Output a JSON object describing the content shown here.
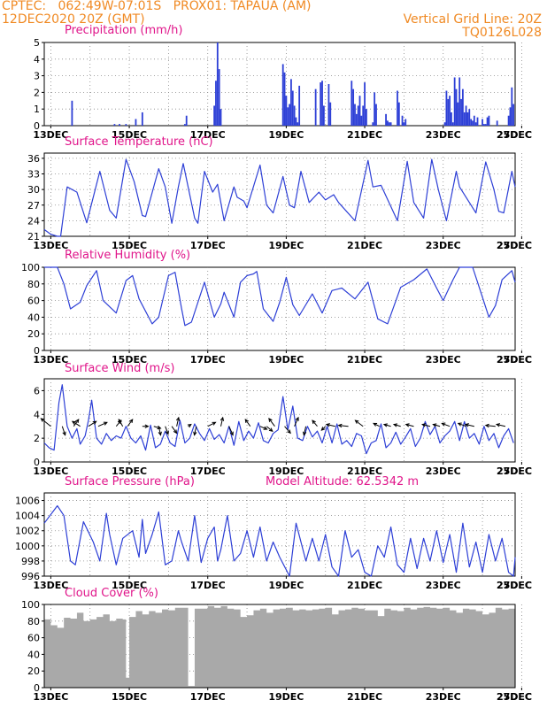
{
  "header": {
    "line1_left": "CPTEC:   062:49W-07:01S   PROX01: TAPAUA (AM)",
    "line2_left": "12DEC2020 20Z (GMT)",
    "line2_right": "Vertical Grid Line: 20Z",
    "line3_right": "TQ0126L028"
  },
  "colors": {
    "header_text": "#f08a24",
    "panel_title": "#e0158a",
    "series_line": "#2d3fd6",
    "precip_bars": "#2d3fd6",
    "cloud_fill": "#a9a9a9",
    "wind_arrows": "#000000"
  },
  "chart_data": [
    {
      "type": "bar",
      "title": "Precipitation (mm/h)",
      "ylim": [
        0,
        5
      ],
      "yticks": [
        "0",
        "1",
        "2",
        "3",
        "4",
        "5"
      ],
      "xticks": [
        "13DEC",
        "15DEC",
        "17DEC",
        "19DEC",
        "21DEC",
        "23DEC",
        "25DEC",
        "27DEC"
      ],
      "x_unit": "hours since 12DEC2020 20Z",
      "x": [
        17,
        43,
        46,
        50,
        56,
        60,
        86,
        87,
        104,
        105,
        106,
        107,
        108,
        146,
        147,
        148,
        149,
        150,
        151,
        152,
        153,
        154,
        155,
        156,
        166,
        169,
        170,
        171,
        174,
        175,
        188,
        189,
        190,
        191,
        192,
        193,
        194,
        195,
        196,
        197,
        201,
        202,
        203,
        209,
        210,
        211,
        212,
        216,
        217,
        219,
        220,
        221,
        245,
        246,
        247,
        248,
        249,
        250,
        251,
        252,
        253,
        254,
        255,
        256,
        257,
        258,
        259,
        260,
        261,
        262,
        263,
        264,
        265,
        268,
        269,
        270,
        271,
        272,
        277,
        284,
        285,
        286,
        287
      ],
      "values": [
        1.5,
        0.1,
        0.1,
        0.1,
        0.4,
        0.8,
        0.1,
        0.6,
        1.2,
        2.7,
        5.0,
        3.4,
        1.0,
        3.7,
        3.2,
        1.8,
        1.1,
        1.3,
        2.8,
        2.1,
        1.2,
        0.5,
        0.2,
        2.4,
        2.2,
        2.6,
        2.7,
        1.2,
        2.5,
        1.4,
        2.7,
        2.2,
        1.3,
        0.7,
        1.2,
        1.8,
        0.6,
        1.2,
        2.6,
        1.0,
        0.2,
        2.0,
        1.3,
        0.7,
        0.3,
        0.2,
        0.2,
        2.1,
        1.4,
        0.6,
        0.2,
        0.4,
        0.2,
        2.1,
        1.6,
        1.8,
        0.8,
        0.2,
        2.9,
        2.2,
        1.4,
        2.9,
        1.6,
        2.2,
        0.8,
        1.2,
        0.8,
        1.0,
        0.4,
        0.3,
        0.6,
        0.2,
        0.5,
        0.4,
        0.1,
        0.1,
        0.5,
        0.6,
        0.3,
        0.6,
        1.1,
        2.3,
        1.3
      ]
    },
    {
      "type": "line",
      "title": "Surface Temperature (nC)",
      "ylim": [
        21,
        37
      ],
      "yticks": [
        "21",
        "24",
        "27",
        "30",
        "33",
        "36"
      ],
      "xticks": [
        "13DEC",
        "15DEC",
        "17DEC",
        "19DEC",
        "21DEC",
        "23DEC",
        "25DEC",
        "27DEC"
      ],
      "x_unit": "hours since 12DEC2020 20Z",
      "x": [
        0,
        4,
        8,
        10,
        14,
        20,
        26,
        34,
        40,
        44,
        50,
        55,
        60,
        62,
        70,
        74,
        78,
        82,
        85,
        92,
        94,
        98,
        103,
        106,
        110,
        116,
        118,
        122,
        124,
        132,
        136,
        140,
        146,
        150,
        153,
        157,
        162,
        168,
        172,
        177,
        180,
        190,
        198,
        201,
        206,
        216,
        222,
        226,
        232,
        237,
        241,
        246,
        252,
        254,
        260,
        264,
        270,
        275,
        278,
        281,
        286,
        288
      ],
      "values": [
        22.3,
        21.4,
        21.0,
        21.0,
        30.5,
        29.5,
        23.6,
        33.5,
        26.0,
        24.5,
        35.8,
        31.5,
        25.0,
        24.8,
        34.0,
        30.5,
        23.5,
        30.5,
        35.0,
        24.5,
        23.5,
        33.5,
        29.5,
        31.0,
        24.0,
        30.5,
        28.5,
        27.8,
        26.5,
        34.7,
        27.0,
        25.5,
        32.5,
        27.0,
        26.5,
        33.5,
        27.5,
        29.5,
        28.0,
        29.0,
        27.5,
        24.0,
        35.6,
        30.5,
        30.8,
        24.0,
        35.4,
        27.5,
        24.5,
        35.8,
        30.0,
        24.0,
        33.5,
        30.5,
        27.5,
        25.5,
        35.3,
        30.0,
        25.8,
        25.5,
        33.5,
        30.5
      ]
    },
    {
      "type": "line",
      "title": "Relative Humidity (%)",
      "ylim": [
        0,
        100
      ],
      "yticks": [
        "0",
        "20",
        "40",
        "60",
        "80",
        "100"
      ],
      "xticks": [
        "13DEC",
        "15DEC",
        "17DEC",
        "19DEC",
        "21DEC",
        "23DEC",
        "25DEC",
        "27DEC"
      ],
      "x_unit": "hours since 12DEC2020 20Z",
      "x": [
        0,
        8,
        12,
        16,
        22,
        26,
        32,
        36,
        44,
        50,
        54,
        58,
        66,
        70,
        76,
        80,
        84,
        86,
        90,
        98,
        104,
        108,
        110,
        116,
        120,
        124,
        128,
        130,
        134,
        140,
        144,
        148,
        152,
        156,
        164,
        170,
        176,
        182,
        190,
        198,
        204,
        210,
        218,
        226,
        234,
        240,
        244,
        250,
        254,
        262,
        266,
        272,
        276,
        280,
        286,
        288
      ],
      "values": [
        100,
        100,
        80,
        50,
        58,
        78,
        96,
        60,
        45,
        84,
        90,
        62,
        32,
        40,
        90,
        94,
        50,
        30,
        34,
        82,
        40,
        56,
        70,
        40,
        82,
        90,
        92,
        95,
        50,
        35,
        58,
        88,
        55,
        42,
        68,
        45,
        72,
        75,
        62,
        82,
        38,
        32,
        76,
        85,
        98,
        75,
        60,
        85,
        100,
        100,
        76,
        40,
        54,
        85,
        96,
        82
      ]
    },
    {
      "type": "line",
      "title": "Surface Wind (m/s)",
      "ylim": [
        0,
        7
      ],
      "yticks": [
        "0",
        "2",
        "4",
        "6"
      ],
      "xticks": [
        "13DEC",
        "15DEC",
        "17DEC",
        "19DEC",
        "21DEC",
        "23DEC",
        "25DEC",
        "27DEC"
      ],
      "x_unit": "hours since 12DEC2020 20Z",
      "x": [
        0,
        3,
        6,
        9,
        11,
        14,
        17,
        20,
        22,
        25,
        27,
        29,
        32,
        35,
        38,
        41,
        44,
        47,
        50,
        53,
        56,
        59,
        62,
        65,
        68,
        71,
        74,
        77,
        80,
        83,
        86,
        89,
        92,
        95,
        98,
        101,
        104,
        107,
        110,
        113,
        116,
        119,
        122,
        125,
        128,
        131,
        134,
        137,
        140,
        143,
        146,
        149,
        152,
        155,
        158,
        161,
        164,
        167,
        170,
        173,
        176,
        179,
        182,
        185,
        188,
        191,
        194,
        197,
        200,
        203,
        206,
        209,
        212,
        215,
        218,
        221,
        224,
        227,
        230,
        233,
        236,
        239,
        242,
        245,
        248,
        251,
        254,
        257,
        260,
        263,
        266,
        269,
        272,
        275,
        278,
        281,
        284,
        287
      ],
      "values": [
        1.6,
        1.2,
        1.0,
        5.0,
        6.5,
        3.0,
        2.0,
        2.8,
        1.5,
        2.2,
        3.5,
        5.2,
        2.0,
        1.5,
        2.4,
        1.8,
        2.2,
        2.0,
        3.0,
        2.0,
        1.6,
        2.2,
        1.0,
        3.1,
        1.2,
        1.5,
        2.6,
        1.6,
        1.3,
        3.5,
        1.6,
        2.0,
        3.2,
        2.4,
        1.8,
        2.8,
        1.9,
        2.3,
        1.6,
        3.0,
        1.4,
        3.4,
        1.8,
        2.6,
        2.0,
        3.3,
        1.8,
        1.6,
        2.4,
        2.7,
        5.5,
        2.7,
        4.7,
        2.0,
        1.8,
        3.0,
        2.1,
        2.6,
        1.6,
        3.0,
        1.6,
        3.2,
        1.5,
        1.8,
        1.3,
        2.4,
        2.2,
        0.7,
        1.6,
        1.8,
        3.2,
        1.2,
        1.6,
        2.5,
        1.5,
        2.1,
        2.8,
        1.3,
        2.0,
        3.4,
        2.3,
        3.0,
        1.6,
        2.2,
        2.6,
        3.4,
        1.8,
        3.4,
        2.0,
        2.4,
        1.5,
        3.0,
        1.8,
        2.4,
        1.2,
        2.2,
        2.8,
        1.6
      ],
      "arrows_x": [
        4,
        11,
        18,
        22,
        27,
        33,
        44,
        48,
        51,
        60,
        67,
        70,
        74,
        78,
        81,
        88,
        93,
        100,
        108,
        113,
        126,
        132,
        136,
        141,
        147,
        153,
        160,
        167,
        172,
        178,
        186,
        195,
        205,
        212,
        218,
        226,
        236,
        242,
        248,
        258,
        263,
        276,
        282
      ],
      "arrows_u": [
        -1.0,
        0.3,
        0.5,
        -0.8,
        0.8,
        0.9,
        0.5,
        -0.4,
        0.5,
        0.6,
        0.7,
        0.2,
        0.3,
        0.5,
        0.2,
        0.3,
        -0.2,
        0.8,
        0.2,
        0.4,
        -0.5,
        0.7,
        0.6,
        -0.6,
        0.6,
        0.4,
        -0.2,
        -0.5,
        -0.4,
        -0.9,
        -1.0,
        -0.8,
        -0.6,
        -0.7,
        -0.7,
        -0.8,
        -0.8,
        -0.7,
        -0.8,
        -0.8,
        -0.9,
        -1.0,
        -0.9
      ],
      "arrows_v": [
        0.8,
        -0.9,
        0.7,
        0.5,
        0.5,
        0.4,
        0.6,
        0.7,
        0.7,
        0.0,
        -0.2,
        -0.9,
        -0.8,
        -0.7,
        0.9,
        0.2,
        -0.9,
        0.4,
        0.9,
        -0.9,
        0.7,
        -0.3,
        -0.5,
        0.8,
        -0.7,
        0.9,
        -0.9,
        0.6,
        -0.4,
        0.2,
        0.1,
        0.6,
        0.3,
        0.2,
        0.2,
        0.2,
        0.2,
        0.2,
        0.3,
        0.3,
        0.2,
        0.1,
        0.2
      ]
    },
    {
      "type": "line",
      "title": "Surface Pressure (hPa)",
      "subtitle": "Model Altitude:  62.5342  m",
      "ylim": [
        996,
        1007
      ],
      "yticks": [
        "996",
        "998",
        "1000",
        "1002",
        "1004",
        "1006"
      ],
      "xticks": [
        "13DEC",
        "15DEC",
        "17DEC",
        "19DEC",
        "21DEC",
        "23DEC",
        "25DEC",
        "27DEC"
      ],
      "x_unit": "hours since 12DEC2020 20Z",
      "x": [
        0,
        8,
        12,
        16,
        19,
        24,
        30,
        34,
        38,
        40,
        44,
        48,
        54,
        58,
        60,
        62,
        66,
        70,
        74,
        78,
        82,
        84,
        88,
        92,
        96,
        100,
        104,
        106,
        108,
        112,
        116,
        120,
        124,
        128,
        132,
        136,
        140,
        144,
        150,
        154,
        160,
        164,
        168,
        172,
        176,
        180,
        184,
        188,
        192,
        196,
        200,
        204,
        208,
        212,
        216,
        220,
        224,
        228,
        232,
        236,
        240,
        244,
        248,
        252,
        256,
        260,
        264,
        268,
        272,
        276,
        280,
        284,
        287,
        288
      ],
      "values": [
        1003.0,
        1005.3,
        1004.0,
        998.0,
        997.5,
        1003.2,
        1000.5,
        998.0,
        1004.3,
        1001.5,
        997.5,
        1001.0,
        1002.0,
        998.5,
        1003.5,
        999.0,
        1001.5,
        1004.5,
        997.5,
        998.0,
        1002.0,
        1000.5,
        998.0,
        1004.0,
        997.8,
        1001.0,
        1002.5,
        998.0,
        999.5,
        1004.0,
        998.0,
        999.0,
        1002.0,
        998.5,
        1002.5,
        998.0,
        1000.5,
        998.5,
        996.0,
        1003.0,
        998.0,
        1001.0,
        998.0,
        1001.5,
        997.2,
        996.0,
        1002.0,
        998.5,
        999.5,
        996.5,
        996.0,
        1000.0,
        998.5,
        1002.5,
        997.5,
        996.5,
        1001.0,
        997.0,
        1001.0,
        998.0,
        1002.0,
        997.8,
        1001.5,
        996.5,
        1003.0,
        997.2,
        1000.5,
        996.5,
        1001.5,
        998.0,
        1001.0,
        996.5,
        996.0,
        998.5
      ]
    },
    {
      "type": "area",
      "title": "Cloud Cover (%)",
      "ylim": [
        0,
        100
      ],
      "yticks": [
        "0",
        "20",
        "40",
        "60",
        "80",
        "100"
      ],
      "xticks": [
        "13DEC",
        "15DEC",
        "17DEC",
        "19DEC",
        "21DEC",
        "23DEC",
        "25DEC",
        "27DEC"
      ],
      "x_unit": "hours since 12DEC2020 20Z",
      "x": [
        0,
        4,
        8,
        12,
        16,
        20,
        24,
        28,
        32,
        36,
        40,
        44,
        48,
        50,
        52,
        56,
        60,
        64,
        68,
        72,
        76,
        80,
        84,
        88,
        92,
        96,
        100,
        104,
        108,
        112,
        116,
        120,
        124,
        128,
        132,
        136,
        140,
        144,
        148,
        152,
        156,
        160,
        164,
        168,
        172,
        176,
        180,
        184,
        188,
        192,
        196,
        200,
        204,
        208,
        212,
        216,
        220,
        224,
        228,
        232,
        236,
        240,
        244,
        248,
        252,
        256,
        260,
        264,
        268,
        272,
        276,
        280,
        284,
        288
      ],
      "values": [
        82,
        75,
        72,
        84,
        83,
        90,
        80,
        82,
        85,
        88,
        80,
        83,
        82,
        12,
        85,
        92,
        88,
        92,
        90,
        94,
        93,
        96,
        96,
        2,
        95,
        95,
        98,
        96,
        98,
        95,
        94,
        85,
        87,
        93,
        95,
        90,
        94,
        95,
        96,
        93,
        94,
        93,
        94,
        95,
        96,
        88,
        93,
        94,
        96,
        95,
        93,
        93,
        86,
        95,
        93,
        92,
        96,
        94,
        96,
        97,
        96,
        95,
        96,
        93,
        90,
        95,
        94,
        92,
        88,
        90,
        96,
        94,
        95,
        96
      ]
    }
  ]
}
